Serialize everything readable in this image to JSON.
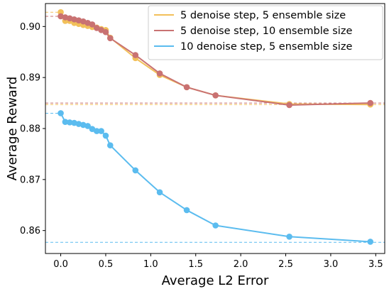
{
  "chart_data": {
    "type": "line",
    "title": "",
    "xlabel": "Average L2 Error",
    "ylabel": "Average Reward",
    "xlim": [
      -0.17,
      3.6
    ],
    "ylim": [
      0.8555,
      0.9045
    ],
    "xticks": [
      0.0,
      0.5,
      1.0,
      1.5,
      2.0,
      2.5,
      3.0,
      3.5
    ],
    "xtick_labels": [
      "0.0",
      "0.5",
      "1.0",
      "1.5",
      "2.0",
      "2.5",
      "3.0",
      "3.5"
    ],
    "yticks": [
      0.86,
      0.87,
      0.88,
      0.89,
      0.9
    ],
    "ytick_labels": [
      "0.86",
      "0.87",
      "0.88",
      "0.89",
      "0.90"
    ],
    "grid": false,
    "legend_position": "top-right",
    "series": [
      {
        "name": "5 denoise step, 5 ensemble size",
        "color": "#f2c05a",
        "x": [
          0.0,
          0.05,
          0.1,
          0.15,
          0.2,
          0.25,
          0.3,
          0.35,
          0.4,
          0.45,
          0.5,
          0.55,
          0.83,
          1.1,
          1.4,
          1.72,
          2.54,
          3.44
        ],
        "y": [
          0.9028,
          0.9011,
          0.9011,
          0.9007,
          0.9005,
          0.9003,
          0.9001,
          0.8999,
          0.8998,
          0.8995,
          0.8993,
          0.8978,
          0.8938,
          0.8905,
          0.8881,
          0.8865,
          0.8848,
          0.8847
        ],
        "baseline": 0.9028
      },
      {
        "name": "5 denoise step, 10 ensemble size",
        "color": "#c97272",
        "x": [
          0.0,
          0.05,
          0.1,
          0.15,
          0.2,
          0.25,
          0.3,
          0.35,
          0.4,
          0.45,
          0.5,
          0.55,
          0.83,
          1.1,
          1.4,
          1.72,
          2.54,
          3.44
        ],
        "y": [
          0.902,
          0.9018,
          0.9016,
          0.9014,
          0.9012,
          0.901,
          0.9007,
          0.9004,
          0.8997,
          0.8993,
          0.8989,
          0.8977,
          0.8944,
          0.8908,
          0.8881,
          0.8865,
          0.8846,
          0.885
        ],
        "baseline": 0.902
      },
      {
        "name": "10 denoise step, 5 ensemble size",
        "color": "#5bbcef",
        "x": [
          0.0,
          0.05,
          0.1,
          0.15,
          0.2,
          0.25,
          0.3,
          0.35,
          0.4,
          0.45,
          0.5,
          0.55,
          0.83,
          1.1,
          1.4,
          1.72,
          2.54,
          3.44
        ],
        "y": [
          0.883,
          0.8813,
          0.8812,
          0.8811,
          0.8809,
          0.8807,
          0.8805,
          0.8799,
          0.8795,
          0.8795,
          0.8786,
          0.8767,
          0.8718,
          0.8675,
          0.864,
          0.861,
          0.8588,
          0.8578
        ],
        "baseline": 0.883
      }
    ],
    "reference_lines": [
      {
        "series": "5 denoise step, 5 ensemble size",
        "y": 0.8847,
        "color": "#f2c05a"
      },
      {
        "series": "5 denoise step, 10 ensemble size",
        "y": 0.885,
        "color": "#c97272"
      },
      {
        "series": "10 denoise step, 5 ensemble size",
        "y": 0.8577,
        "color": "#5bbcef"
      }
    ]
  }
}
